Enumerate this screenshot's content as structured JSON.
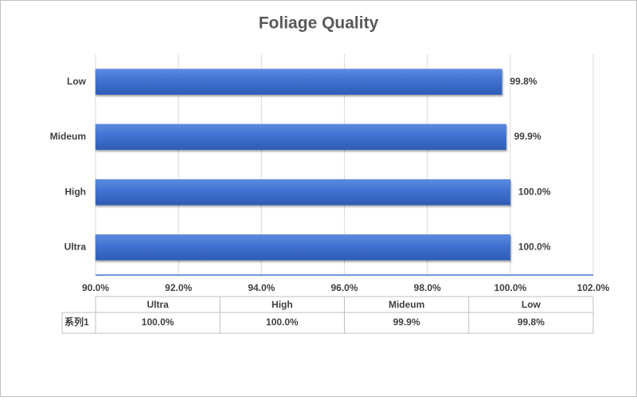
{
  "chart_data": {
    "type": "bar",
    "orientation": "horizontal",
    "title": "Foliage Quality",
    "categories": [
      "Ultra",
      "High",
      "Mideum",
      "Low"
    ],
    "series": [
      {
        "name": "系列1",
        "color": "#4472c4",
        "values": [
          100.0,
          100.0,
          99.9,
          99.8
        ],
        "value_labels": [
          "100.0%",
          "100.0%",
          "99.9%",
          "99.8%"
        ]
      }
    ],
    "xlim": [
      90,
      102
    ],
    "xticks": [
      {
        "value": 90,
        "label": "90.0%"
      },
      {
        "value": 92,
        "label": "92.0%"
      },
      {
        "value": 94,
        "label": "94.0%"
      },
      {
        "value": 96,
        "label": "96.0%"
      },
      {
        "value": 98,
        "label": "98.0%"
      },
      {
        "value": 100,
        "label": "100.0%"
      },
      {
        "value": 102,
        "label": "102.0%"
      }
    ],
    "grid": true,
    "data_table": true
  }
}
